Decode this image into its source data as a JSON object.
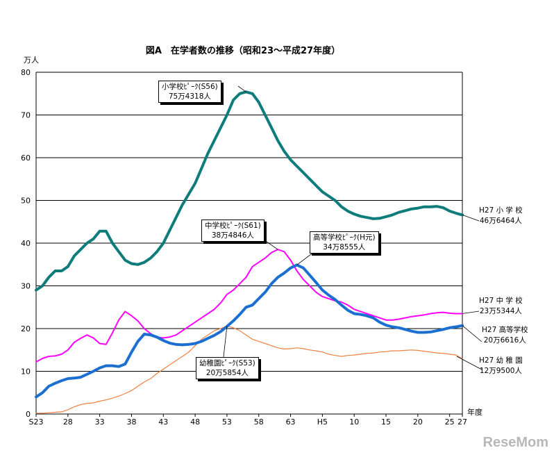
{
  "chart_data": {
    "type": "line",
    "title": "図A　在学者数の推移（昭和23～平成27年度）",
    "ylabel": "万人",
    "xlabel": "年度",
    "ylim": [
      0,
      80
    ],
    "yticks": [
      0,
      10,
      20,
      30,
      40,
      50,
      60,
      70,
      80
    ],
    "grid": "horizontal",
    "x_start_year": 1948,
    "x_end_year": 2015,
    "xtick_labels": [
      {
        "year": 1948,
        "label": "S23"
      },
      {
        "year": 1953,
        "label": "28"
      },
      {
        "year": 1958,
        "label": "33"
      },
      {
        "year": 1963,
        "label": "38"
      },
      {
        "year": 1968,
        "label": "43"
      },
      {
        "year": 1973,
        "label": "48"
      },
      {
        "year": 1978,
        "label": "53"
      },
      {
        "year": 1983,
        "label": "58"
      },
      {
        "year": 1988,
        "label": "63"
      },
      {
        "year": 1993,
        "label": "H5"
      },
      {
        "year": 1998,
        "label": "10"
      },
      {
        "year": 2003,
        "label": "15"
      },
      {
        "year": 2008,
        "label": "20"
      },
      {
        "year": 2013,
        "label": "25"
      },
      {
        "year": 2015,
        "label": "27"
      }
    ],
    "series": [
      {
        "key": "elementary",
        "color": "#0e7c7b",
        "width": 4,
        "values": [
          29,
          30,
          32,
          33.5,
          33.5,
          34.5,
          37,
          38.5,
          40,
          41,
          42.8,
          42.8,
          40,
          38,
          36,
          35.2,
          35,
          35.5,
          36.5,
          38,
          40,
          43,
          46,
          49,
          51.5,
          54,
          57.5,
          61,
          64,
          67,
          70,
          73.5,
          75,
          75.4,
          75,
          73,
          70,
          67,
          64,
          61.5,
          59.5,
          58,
          56.5,
          55,
          53.5,
          52,
          51,
          50,
          48.5,
          47.5,
          46.8,
          46.3,
          46,
          45.7,
          45.8,
          46.2,
          46.6,
          47.2,
          47.6,
          48,
          48.2,
          48.5,
          48.5,
          48.6,
          48.3,
          47.5,
          47,
          46.6
        ]
      },
      {
        "key": "junior_high",
        "color": "#ff00ff",
        "width": 2,
        "values": [
          12.2,
          13,
          13.5,
          13.6,
          14,
          15,
          16.8,
          17.7,
          18.5,
          17.8,
          16.5,
          16.3,
          19,
          22,
          24,
          23,
          21.8,
          20,
          18.8,
          18,
          17.8,
          18,
          18.5,
          19.5,
          20.5,
          21.5,
          22.5,
          23.5,
          24.5,
          26,
          28,
          29,
          30.5,
          32,
          34.5,
          35.5,
          36.5,
          37.8,
          38.5,
          38,
          36,
          33.5,
          31.5,
          30,
          28.5,
          27.5,
          27,
          26.5,
          26.2,
          25.5,
          24.5,
          24,
          23.5,
          23,
          22.5,
          22,
          22,
          22.2,
          22.5,
          22.8,
          23,
          23.2,
          23.5,
          23.7,
          23.8,
          23.6,
          23.5,
          23.5
        ]
      },
      {
        "key": "high_school",
        "color": "#1a6fd0",
        "width": 4,
        "values": [
          4,
          5,
          6.5,
          7.2,
          7.8,
          8.3,
          8.4,
          8.6,
          9.3,
          10,
          10.8,
          11.3,
          11.3,
          11.1,
          11.7,
          14.5,
          17,
          18.7,
          18.5,
          18,
          17.2,
          16.6,
          16.3,
          16.2,
          16.3,
          16.5,
          17,
          17.7,
          18.4,
          19.3,
          20.5,
          21.8,
          23.3,
          25,
          25.5,
          27,
          28.5,
          30.5,
          32,
          33,
          34.2,
          34.9,
          34.2,
          32.5,
          30.8,
          29,
          27.8,
          26.8,
          25.5,
          24.3,
          23.5,
          23.3,
          23,
          22.5,
          21.5,
          20.8,
          20.4,
          20.2,
          19.8,
          19.4,
          19.1,
          19.1,
          19.2,
          19.5,
          19.8,
          20.2,
          20.4,
          20.7
        ]
      },
      {
        "key": "kindergarten",
        "color": "#f08040",
        "width": 1.2,
        "values": [
          0.2,
          0.2,
          0.3,
          0.4,
          0.5,
          1,
          1.7,
          2.2,
          2.5,
          2.6,
          3,
          3.3,
          3.7,
          4.2,
          4.8,
          5.5,
          6.5,
          7.5,
          8.3,
          9.5,
          10.5,
          11.5,
          12.5,
          13.5,
          14.5,
          16,
          17.5,
          18.5,
          19.5,
          20,
          20.6,
          20.2,
          19.5,
          18.5,
          17.5,
          17,
          16.5,
          16,
          15.5,
          15.2,
          15.3,
          15.5,
          15.3,
          15,
          14.8,
          14.5,
          14,
          13.7,
          13.5,
          13.7,
          13.8,
          14,
          14.2,
          14.3,
          14.5,
          14.6,
          14.8,
          14.8,
          14.9,
          15,
          14.9,
          14.7,
          14.5,
          14.3,
          14.2,
          14,
          13.8,
          12.95
        ]
      }
    ],
    "annotations": {
      "elementary_peak": {
        "line1": "小学校ﾋﾟｰｸ(S56)",
        "line2": "75万4318人"
      },
      "junior_peak": {
        "line1": "中学校ﾋﾟｰｸ(S61)",
        "line2": "38万4846人"
      },
      "high_peak": {
        "line1": "高等学校ﾋﾟｰｸ(H元)",
        "line2": "34万8555人"
      },
      "kinder_peak": {
        "line1": "幼稚園ﾋﾟｰｸ(S53)",
        "line2": "20万5854人"
      },
      "elementary_end": {
        "line1": "H27 小 学 校",
        "line2": "46万6464人"
      },
      "junior_end": {
        "line1": "H27 中 学 校",
        "line2": "23万5344人"
      },
      "high_end": {
        "line1": "H27 高等学校",
        "line2": "20万6616人"
      },
      "kinder_end": {
        "line1": "H27 幼 稚 園",
        "line2": "12万9500人"
      }
    }
  },
  "watermark": "ReseMom"
}
